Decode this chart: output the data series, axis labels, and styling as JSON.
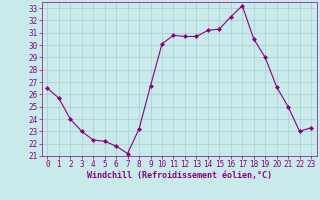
{
  "x": [
    0,
    1,
    2,
    3,
    4,
    5,
    6,
    7,
    8,
    9,
    10,
    11,
    12,
    13,
    14,
    15,
    16,
    17,
    18,
    19,
    20,
    21,
    22,
    23
  ],
  "y": [
    26.5,
    25.7,
    24.0,
    23.0,
    22.3,
    22.2,
    21.8,
    21.2,
    23.2,
    26.7,
    30.1,
    30.8,
    30.7,
    30.7,
    31.2,
    31.3,
    32.3,
    33.2,
    30.5,
    29.0,
    26.6,
    25.0,
    23.0,
    23.3
  ],
  "line_color": "#880088",
  "marker": "D",
  "marker_size": 2.0,
  "background_color": "#c8eaea",
  "grid_color": "#aacccc",
  "xlabel": "Windchill (Refroidissement éolien,°C)",
  "xlabel_color": "#880088",
  "ylim": [
    21,
    33.5
  ],
  "xlim": [
    -0.5,
    23.5
  ],
  "yticks": [
    21,
    22,
    23,
    24,
    25,
    26,
    27,
    28,
    29,
    30,
    31,
    32,
    33
  ],
  "xticks": [
    0,
    1,
    2,
    3,
    4,
    5,
    6,
    7,
    8,
    9,
    10,
    11,
    12,
    13,
    14,
    15,
    16,
    17,
    18,
    19,
    20,
    21,
    22,
    23
  ],
  "tick_fontsize": 5.5,
  "xlabel_fontsize": 6.0
}
